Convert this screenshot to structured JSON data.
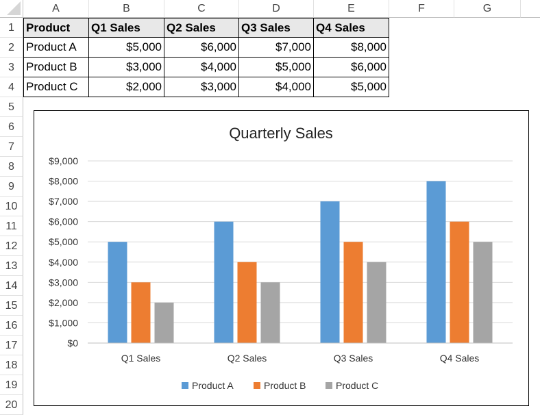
{
  "sheet": {
    "columns": [
      "A",
      "B",
      "C",
      "D",
      "E",
      "F",
      "G"
    ],
    "rows": [
      "1",
      "2",
      "3",
      "4",
      "5",
      "6",
      "7",
      "8",
      "9",
      "10",
      "11",
      "12",
      "13",
      "14",
      "15",
      "16",
      "17",
      "18",
      "19",
      "20"
    ],
    "table": {
      "headers": [
        "Product",
        "Q1 Sales",
        "Q2 Sales",
        "Q3 Sales",
        "Q4 Sales"
      ],
      "rows": [
        [
          "Product A",
          "$5,000",
          "$6,000",
          "$7,000",
          "$8,000"
        ],
        [
          "Product B",
          "$3,000",
          "$4,000",
          "$5,000",
          "$6,000"
        ],
        [
          "Product C",
          "$2,000",
          "$3,000",
          "$4,000",
          "$5,000"
        ]
      ]
    }
  },
  "chart_data": {
    "type": "bar",
    "title": "Quarterly Sales",
    "categories": [
      "Q1 Sales",
      "Q2 Sales",
      "Q3 Sales",
      "Q4 Sales"
    ],
    "series": [
      {
        "name": "Product A",
        "values": [
          5000,
          6000,
          7000,
          8000
        ],
        "color": "#5b9bd5"
      },
      {
        "name": "Product B",
        "values": [
          3000,
          4000,
          5000,
          6000
        ],
        "color": "#ed7d31"
      },
      {
        "name": "Product C",
        "values": [
          2000,
          3000,
          4000,
          5000
        ],
        "color": "#a5a5a5"
      }
    ],
    "ylim": [
      0,
      9000
    ],
    "yticks": [
      "$0",
      "$1,000",
      "$2,000",
      "$3,000",
      "$4,000",
      "$5,000",
      "$6,000",
      "$7,000",
      "$8,000",
      "$9,000"
    ],
    "grid": true,
    "legend": "bottom"
  }
}
